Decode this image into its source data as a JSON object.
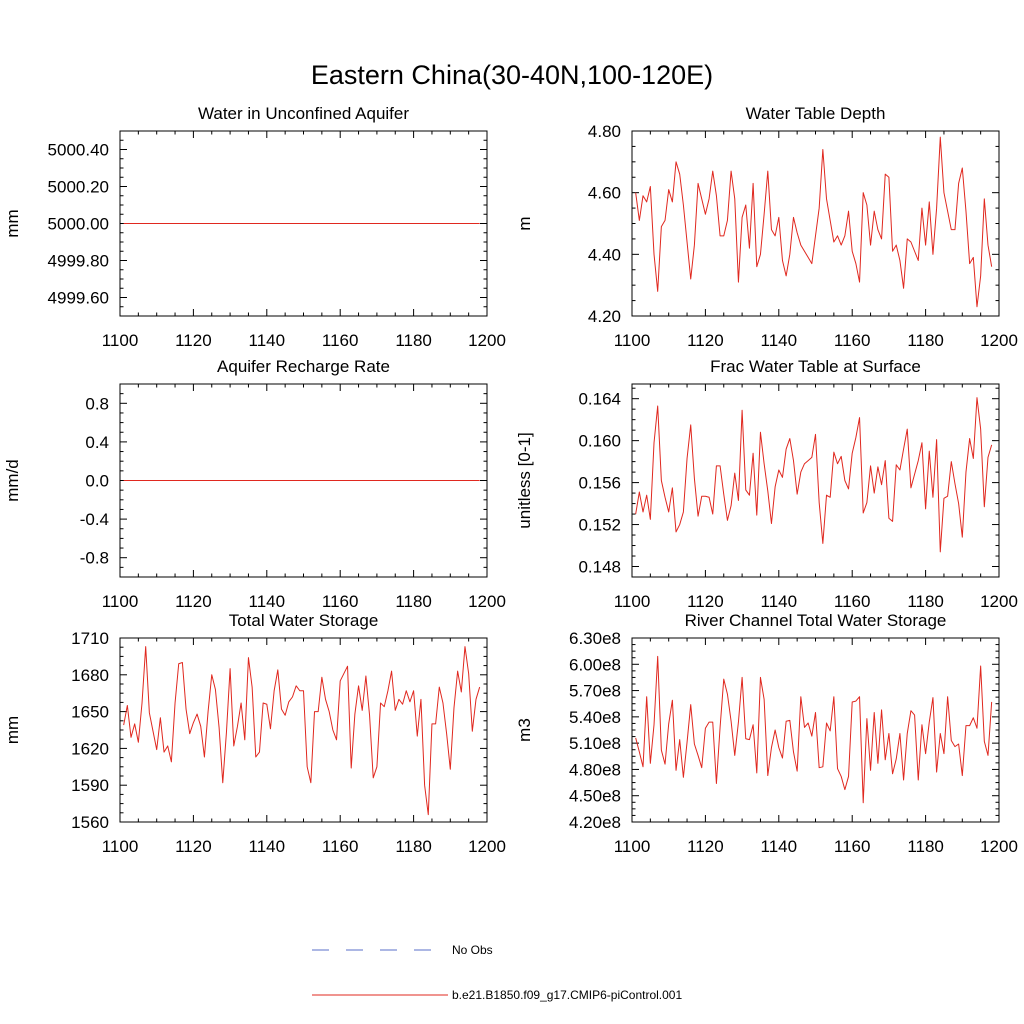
{
  "figure": {
    "title": "Eastern China(30-40N,100-120E)"
  },
  "legend": {
    "entries": [
      {
        "label": "No Obs",
        "color": "#5a6fc9",
        "style": "dashed"
      },
      {
        "label": "b.e21.B1850.f09_g17.CMIP6-piControl.001",
        "color": "#e0281f",
        "style": "solid"
      }
    ]
  },
  "chart_data": [
    {
      "type": "line",
      "title": "Water in Unconfined Aquifer",
      "ylabel": "mm",
      "xlim": [
        1100,
        1200
      ],
      "ylim": [
        4999.5,
        5000.5
      ],
      "xticks": [
        1100,
        1120,
        1140,
        1160,
        1180,
        1200
      ],
      "xtick_labels": [
        "1100",
        "1120",
        "1140",
        "1160",
        "1180",
        "1200"
      ],
      "yticks": [
        4999.6,
        4999.8,
        5000.0,
        5000.2,
        5000.4
      ],
      "ytick_labels": [
        "4999.60",
        "4999.80",
        "5000.00",
        "5000.20",
        "5000.40"
      ],
      "series": [
        {
          "color": "#e0281f",
          "x": [
            1101,
            1198
          ],
          "y": [
            5000.0,
            5000.0
          ]
        }
      ]
    },
    {
      "type": "line",
      "title": "Water Table Depth",
      "ylabel": "m",
      "xlim": [
        1100,
        1200
      ],
      "ylim": [
        4.2,
        4.8
      ],
      "xticks": [
        1100,
        1120,
        1140,
        1160,
        1180,
        1200
      ],
      "xtick_labels": [
        "1100",
        "1120",
        "1140",
        "1160",
        "1180",
        "1200"
      ],
      "yticks": [
        4.2,
        4.4,
        4.6,
        4.8
      ],
      "ytick_labels": [
        "4.20",
        "4.40",
        "4.60",
        "4.80"
      ],
      "series": [
        {
          "color": "#e0281f",
          "x": [
            1101,
            1102,
            1103,
            1104,
            1105,
            1106,
            1107,
            1108,
            1109,
            1110,
            1111,
            1112,
            1113,
            1114,
            1115,
            1116,
            1117,
            1118,
            1119,
            1120,
            1121,
            1122,
            1123,
            1124,
            1125,
            1126,
            1127,
            1128,
            1129,
            1130,
            1131,
            1132,
            1133,
            1134,
            1135,
            1136,
            1137,
            1138,
            1139,
            1140,
            1141,
            1142,
            1143,
            1144,
            1145,
            1146,
            1147,
            1148,
            1149,
            1150,
            1151,
            1152,
            1153,
            1154,
            1155,
            1156,
            1157,
            1158,
            1159,
            1160,
            1161,
            1162,
            1163,
            1164,
            1165,
            1166,
            1167,
            1168,
            1169,
            1170,
            1171,
            1172,
            1173,
            1174,
            1175,
            1176,
            1177,
            1178,
            1179,
            1180,
            1181,
            1182,
            1183,
            1184,
            1185,
            1186,
            1187,
            1188,
            1189,
            1190,
            1191,
            1192,
            1193,
            1194,
            1195,
            1196,
            1197,
            1198
          ],
          "y": [
            4.6,
            4.51,
            4.59,
            4.57,
            4.62,
            4.4,
            4.28,
            4.49,
            4.51,
            4.61,
            4.57,
            4.7,
            4.66,
            4.56,
            4.44,
            4.32,
            4.43,
            4.63,
            4.58,
            4.53,
            4.58,
            4.67,
            4.59,
            4.46,
            4.46,
            4.51,
            4.67,
            4.58,
            4.31,
            4.52,
            4.56,
            4.42,
            4.63,
            4.36,
            4.4,
            4.53,
            4.67,
            4.48,
            4.46,
            4.52,
            4.38,
            4.33,
            4.4,
            4.52,
            4.47,
            4.43,
            4.41,
            4.39,
            4.37,
            4.46,
            4.55,
            4.74,
            4.58,
            4.51,
            4.44,
            4.46,
            4.43,
            4.46,
            4.54,
            4.41,
            4.37,
            4.31,
            4.6,
            4.56,
            4.43,
            4.54,
            4.48,
            4.45,
            4.66,
            4.65,
            4.41,
            4.43,
            4.38,
            4.29,
            4.45,
            4.44,
            4.41,
            4.38,
            4.55,
            4.43,
            4.57,
            4.4,
            4.55,
            4.78,
            4.6,
            4.54,
            4.48,
            4.48,
            4.63,
            4.68,
            4.54,
            4.37,
            4.39,
            4.23,
            4.33,
            4.58,
            4.43,
            4.36
          ]
        }
      ]
    },
    {
      "type": "line",
      "title": "Aquifer Recharge Rate",
      "ylabel": "mm/d",
      "xlim": [
        1100,
        1200
      ],
      "ylim": [
        -1.0,
        1.0
      ],
      "xticks": [
        1100,
        1120,
        1140,
        1160,
        1180,
        1200
      ],
      "xtick_labels": [
        "1100",
        "1120",
        "1140",
        "1160",
        "1180",
        "1200"
      ],
      "yticks": [
        -0.8,
        -0.4,
        0.0,
        0.4,
        0.8
      ],
      "ytick_labels": [
        "-0.8",
        "-0.4",
        "0.0",
        "0.4",
        "0.8"
      ],
      "series": [
        {
          "color": "#e0281f",
          "x": [
            1101,
            1198
          ],
          "y": [
            0.0,
            0.0
          ]
        }
      ]
    },
    {
      "type": "line",
      "title": "Frac Water Table at Surface",
      "ylabel": "unitless [0-1]",
      "xlim": [
        1100,
        1200
      ],
      "ylim": [
        0.147,
        0.1654
      ],
      "xticks": [
        1100,
        1120,
        1140,
        1160,
        1180,
        1200
      ],
      "xtick_labels": [
        "1100",
        "1120",
        "1140",
        "1160",
        "1180",
        "1200"
      ],
      "yticks": [
        0.148,
        0.152,
        0.156,
        0.16,
        0.164
      ],
      "ytick_labels": [
        "0.148",
        "0.152",
        "0.156",
        "0.160",
        "0.164"
      ],
      "series": [
        {
          "color": "#e0281f",
          "x": [
            1101,
            1102,
            1103,
            1104,
            1105,
            1106,
            1107,
            1108,
            1109,
            1110,
            1111,
            1112,
            1113,
            1114,
            1115,
            1116,
            1117,
            1118,
            1119,
            1120,
            1121,
            1122,
            1123,
            1124,
            1125,
            1126,
            1127,
            1128,
            1129,
            1130,
            1131,
            1132,
            1133,
            1134,
            1135,
            1136,
            1137,
            1138,
            1139,
            1140,
            1141,
            1142,
            1143,
            1144,
            1145,
            1146,
            1147,
            1148,
            1149,
            1150,
            1151,
            1152,
            1153,
            1154,
            1155,
            1156,
            1157,
            1158,
            1159,
            1160,
            1161,
            1162,
            1163,
            1164,
            1165,
            1166,
            1167,
            1168,
            1169,
            1170,
            1171,
            1172,
            1173,
            1174,
            1175,
            1176,
            1177,
            1178,
            1179,
            1180,
            1181,
            1182,
            1183,
            1184,
            1185,
            1186,
            1187,
            1188,
            1189,
            1190,
            1191,
            1192,
            1193,
            1194,
            1195,
            1196,
            1197,
            1198
          ],
          "y": [
            0.153,
            0.1551,
            0.1532,
            0.1548,
            0.1525,
            0.1598,
            0.1633,
            0.1562,
            0.1546,
            0.1532,
            0.1555,
            0.1513,
            0.152,
            0.1532,
            0.1583,
            0.1615,
            0.1564,
            0.1528,
            0.1547,
            0.1547,
            0.1546,
            0.153,
            0.1576,
            0.1576,
            0.1549,
            0.1524,
            0.1538,
            0.1569,
            0.1543,
            0.1629,
            0.1553,
            0.1548,
            0.1588,
            0.1529,
            0.1608,
            0.1578,
            0.1552,
            0.1521,
            0.1556,
            0.1572,
            0.1565,
            0.1592,
            0.1602,
            0.1581,
            0.1549,
            0.157,
            0.1578,
            0.1581,
            0.1584,
            0.1606,
            0.1541,
            0.1502,
            0.1548,
            0.1546,
            0.1589,
            0.1578,
            0.1585,
            0.1562,
            0.1554,
            0.1588,
            0.1603,
            0.1622,
            0.1531,
            0.1541,
            0.1576,
            0.155,
            0.1575,
            0.1558,
            0.1581,
            0.1526,
            0.1523,
            0.1577,
            0.1572,
            0.1592,
            0.1611,
            0.1555,
            0.1568,
            0.1581,
            0.1598,
            0.1535,
            0.159,
            0.1546,
            0.1601,
            0.1494,
            0.1545,
            0.1547,
            0.158,
            0.1559,
            0.154,
            0.1508,
            0.157,
            0.1602,
            0.1583,
            0.1641,
            0.1611,
            0.1537,
            0.1584,
            0.1596
          ]
        }
      ]
    },
    {
      "type": "line",
      "title": "Total Water Storage",
      "ylabel": "mm",
      "xlim": [
        1100,
        1200
      ],
      "ylim": [
        1560,
        1710
      ],
      "xticks": [
        1100,
        1120,
        1140,
        1160,
        1180,
        1200
      ],
      "xtick_labels": [
        "1100",
        "1120",
        "1140",
        "1160",
        "1180",
        "1200"
      ],
      "yticks": [
        1560,
        1590,
        1620,
        1650,
        1680,
        1710
      ],
      "ytick_labels": [
        "1560",
        "1590",
        "1620",
        "1650",
        "1680",
        "1710"
      ],
      "series": [
        {
          "color": "#e0281f",
          "x": [
            1101,
            1102,
            1103,
            1104,
            1105,
            1106,
            1107,
            1108,
            1109,
            1110,
            1111,
            1112,
            1113,
            1114,
            1115,
            1116,
            1117,
            1118,
            1119,
            1120,
            1121,
            1122,
            1123,
            1124,
            1125,
            1126,
            1127,
            1128,
            1129,
            1130,
            1131,
            1132,
            1133,
            1134,
            1135,
            1136,
            1137,
            1138,
            1139,
            1140,
            1141,
            1142,
            1143,
            1144,
            1145,
            1146,
            1147,
            1148,
            1149,
            1150,
            1151,
            1152,
            1153,
            1154,
            1155,
            1156,
            1157,
            1158,
            1159,
            1160,
            1161,
            1162,
            1163,
            1164,
            1165,
            1166,
            1167,
            1168,
            1169,
            1170,
            1171,
            1172,
            1173,
            1174,
            1175,
            1176,
            1177,
            1178,
            1179,
            1180,
            1181,
            1182,
            1183,
            1184,
            1185,
            1186,
            1187,
            1188,
            1189,
            1190,
            1191,
            1192,
            1193,
            1194,
            1195,
            1196,
            1197,
            1198
          ],
          "y": [
            1639,
            1655,
            1629,
            1640,
            1625,
            1657,
            1703,
            1649,
            1634,
            1619,
            1645,
            1617,
            1622,
            1609,
            1657,
            1689,
            1690,
            1652,
            1632,
            1641,
            1648,
            1638,
            1613,
            1650,
            1680,
            1668,
            1637,
            1592,
            1633,
            1685,
            1622,
            1638,
            1657,
            1627,
            1694,
            1670,
            1613,
            1617,
            1657,
            1656,
            1636,
            1667,
            1684,
            1652,
            1647,
            1658,
            1662,
            1671,
            1667,
            1667,
            1605,
            1592,
            1650,
            1650,
            1678,
            1660,
            1650,
            1635,
            1627,
            1675,
            1681,
            1687,
            1604,
            1648,
            1671,
            1651,
            1679,
            1647,
            1596,
            1605,
            1657,
            1654,
            1667,
            1683,
            1651,
            1660,
            1656,
            1667,
            1658,
            1667,
            1630,
            1660,
            1590,
            1566,
            1640,
            1640,
            1670,
            1657,
            1632,
            1603,
            1653,
            1683,
            1666,
            1703,
            1681,
            1634,
            1660,
            1670
          ]
        }
      ]
    },
    {
      "type": "line",
      "title": "River Channel Total Water Storage",
      "ylabel": "m3",
      "xlim": [
        1100,
        1200
      ],
      "ylim": [
        420000000,
        630000000
      ],
      "xticks": [
        1100,
        1120,
        1140,
        1160,
        1180,
        1200
      ],
      "xtick_labels": [
        "1100",
        "1120",
        "1140",
        "1160",
        "1180",
        "1200"
      ],
      "yticks": [
        420000000,
        450000000,
        480000000,
        510000000,
        540000000,
        570000000,
        600000000,
        630000000
      ],
      "ytick_labels": [
        "4.20e8",
        "4.50e8",
        "4.80e8",
        "5.10e8",
        "5.40e8",
        "5.70e8",
        "6.00e8",
        "6.30e8"
      ],
      "series": [
        {
          "color": "#e0281f",
          "x": [
            1101,
            1102,
            1103,
            1104,
            1105,
            1106,
            1107,
            1108,
            1109,
            1110,
            1111,
            1112,
            1113,
            1114,
            1115,
            1116,
            1117,
            1118,
            1119,
            1120,
            1121,
            1122,
            1123,
            1124,
            1125,
            1126,
            1127,
            1128,
            1129,
            1130,
            1131,
            1132,
            1133,
            1134,
            1135,
            1136,
            1137,
            1138,
            1139,
            1140,
            1141,
            1142,
            1143,
            1144,
            1145,
            1146,
            1147,
            1148,
            1149,
            1150,
            1151,
            1152,
            1153,
            1154,
            1155,
            1156,
            1157,
            1158,
            1159,
            1160,
            1161,
            1162,
            1163,
            1164,
            1165,
            1166,
            1167,
            1168,
            1169,
            1170,
            1171,
            1172,
            1173,
            1174,
            1175,
            1176,
            1177,
            1178,
            1179,
            1180,
            1181,
            1182,
            1183,
            1184,
            1185,
            1186,
            1187,
            1188,
            1189,
            1190,
            1191,
            1192,
            1193,
            1194,
            1195,
            1196,
            1197,
            1198
          ],
          "y": [
            516,
            500,
            483,
            563,
            487,
            531,
            609,
            502,
            486,
            532,
            559,
            479,
            514,
            471,
            511,
            554,
            509,
            496,
            482,
            527,
            534,
            534,
            464,
            528,
            583,
            566,
            535,
            496,
            534,
            585,
            515,
            514,
            531,
            476,
            585,
            560,
            473,
            505,
            525,
            505,
            493,
            535,
            536,
            500,
            478,
            563,
            528,
            533,
            518,
            545,
            482,
            483,
            533,
            524,
            563,
            481,
            472,
            457,
            472,
            557,
            558,
            563,
            442,
            538,
            479,
            545,
            487,
            548,
            491,
            521,
            475,
            492,
            521,
            468,
            521,
            547,
            542,
            468,
            531,
            498,
            534,
            562,
            477,
            521,
            498,
            563,
            513,
            506,
            509,
            473,
            530,
            530,
            539,
            527,
            598,
            512,
            496,
            557
          ]
        }
      ]
    }
  ]
}
